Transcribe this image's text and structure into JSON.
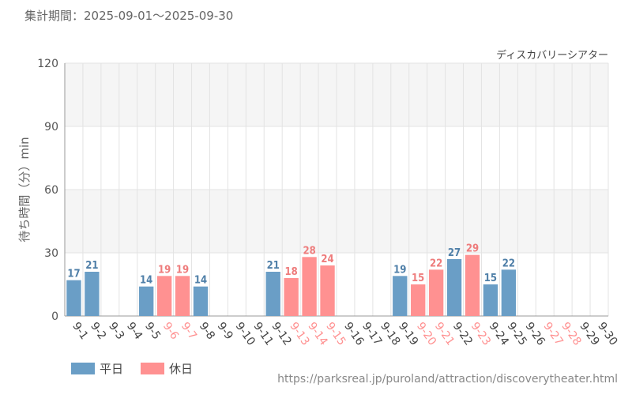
{
  "header": {
    "period_label": "集計期間：2025-09-01～2025-09-30"
  },
  "footer": {
    "url": "https://parksreal.jp/puroland/attraction/discoverytheater.html"
  },
  "colors": {
    "weekday": "#6a9ec6",
    "holiday": "#ff9191",
    "weekday_label": "#4f7fa8",
    "holiday_label": "#ee7c7c"
  },
  "chart_data": {
    "type": "bar",
    "title": "ディスカバリーシアター",
    "ylabel": "待ち時間（分）min",
    "xlabel": "",
    "ylim": [
      0,
      120
    ],
    "yticks": [
      0,
      30,
      60,
      90,
      120
    ],
    "grid": true,
    "legend_position": "bottom-left",
    "categories": [
      "9-1",
      "9-2",
      "9-3",
      "9-4",
      "9-5",
      "9-6",
      "9-7",
      "9-8",
      "9-9",
      "9-10",
      "9-11",
      "9-12",
      "9-13",
      "9-14",
      "9-15",
      "9-16",
      "9-17",
      "9-18",
      "9-19",
      "9-20",
      "9-21",
      "9-22",
      "9-23",
      "9-24",
      "9-25",
      "9-26",
      "9-27",
      "9-28",
      "9-29",
      "9-30"
    ],
    "values": [
      17,
      21,
      null,
      null,
      14,
      19,
      19,
      14,
      null,
      null,
      null,
      21,
      18,
      28,
      24,
      null,
      null,
      null,
      19,
      15,
      22,
      27,
      29,
      15,
      22,
      null,
      null,
      null,
      null,
      null
    ],
    "day_types": [
      "weekday",
      "weekday",
      "weekday",
      "weekday",
      "weekday",
      "holiday",
      "holiday",
      "weekday",
      "weekday",
      "weekday",
      "weekday",
      "weekday",
      "holiday",
      "holiday",
      "holiday",
      "weekday",
      "weekday",
      "weekday",
      "weekday",
      "holiday",
      "holiday",
      "weekday",
      "holiday",
      "weekday",
      "weekday",
      "weekday",
      "holiday",
      "holiday",
      "weekday",
      "weekday"
    ],
    "series": [
      {
        "name": "平日",
        "key": "weekday"
      },
      {
        "name": "休日",
        "key": "holiday"
      }
    ]
  }
}
